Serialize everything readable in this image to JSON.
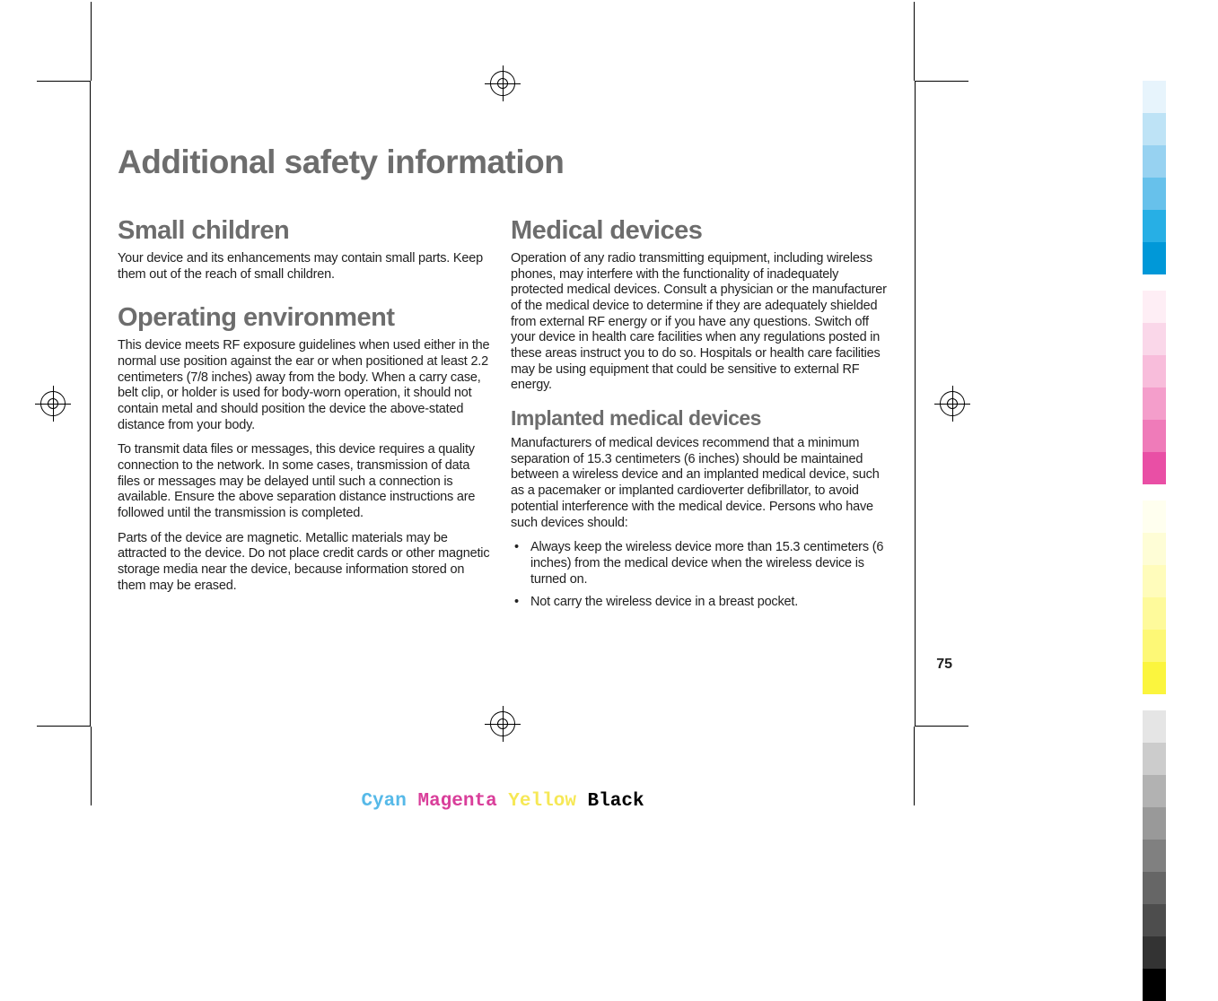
{
  "page": {
    "title": "Additional safety information",
    "number": "75"
  },
  "left_column": {
    "section1": {
      "title": "Small children",
      "p1": "Your device and its enhancements may contain small parts. Keep them out of the reach of small children."
    },
    "section2": {
      "title": "Operating environment",
      "p1": "This device meets RF exposure guidelines when used either in the normal use position against the ear or when positioned at least 2.2 centimeters (7/8 inches) away from the body. When a carry case, belt clip, or holder is used for body-worn operation, it should not contain metal and should position the device the above-stated distance from your body.",
      "p2": "To transmit data files or messages, this device requires a quality connection to the network. In some cases, transmission of data files or messages may be delayed until such a connection is available. Ensure the above separation distance instructions are followed until the transmission is completed.",
      "p3": "Parts of the device are magnetic. Metallic materials may be attracted to the device. Do not place credit cards or other magnetic storage media near the device, because information stored on them may be erased."
    }
  },
  "right_column": {
    "section1": {
      "title": "Medical devices",
      "p1": "Operation of any radio transmitting equipment, including wireless phones, may interfere with the functionality of inadequately protected medical devices. Consult a physician or the manufacturer of the medical device to determine if they are adequately shielded from external RF energy or if you have any questions. Switch off your device in health care facilities when any regulations posted in these areas instruct you to do so. Hospitals or health care facilities may be using equipment that could be sensitive to external RF energy."
    },
    "section2": {
      "title": "Implanted medical devices",
      "p1": "Manufacturers of medical devices recommend that a minimum separation of 15.3 centimeters (6 inches) should be maintained between a wireless device and an implanted medical device, such as a pacemaker or implanted cardioverter defibrillator, to avoid potential interference with the medical device. Persons who have such devices should:",
      "bullets": [
        "Always keep the wireless device more than 15.3 centimeters (6 inches) from the medical device when the wireless device is turned on.",
        "Not carry the wireless device in a breast pocket."
      ]
    }
  },
  "cmyk": {
    "c": "Cyan",
    "m": "Magenta",
    "y": "Yellow",
    "k": "Black"
  },
  "swatches_top": [
    "#e7f4fc",
    "#bee3f6",
    "#97d2f1",
    "#67c1eb",
    "#27afe5",
    "#0098d8",
    "#ffffff",
    "#feeef5",
    "#fad7e9",
    "#f8bddb",
    "#f49ecb",
    "#ef7bb9",
    "#e94fa5",
    "#ffffff",
    "#ffffef",
    "#fefdd6",
    "#fffcbb",
    "#fefa9b",
    "#fdf876",
    "#fbf53e",
    "#ffffff",
    "#e5e5e5",
    "#cccccc",
    "#b2b2b2",
    "#999999",
    "#808080",
    "#666666",
    "#4d4d4d",
    "#333333",
    "#000000"
  ],
  "colors": {
    "heading_gray": "#6d6d6d",
    "text_color": "#212121",
    "bg": "#ffffff"
  },
  "typography": {
    "main_title_size": 37,
    "section_title_size": 29,
    "subsection_title_size": 23,
    "body_size": 14.5
  }
}
